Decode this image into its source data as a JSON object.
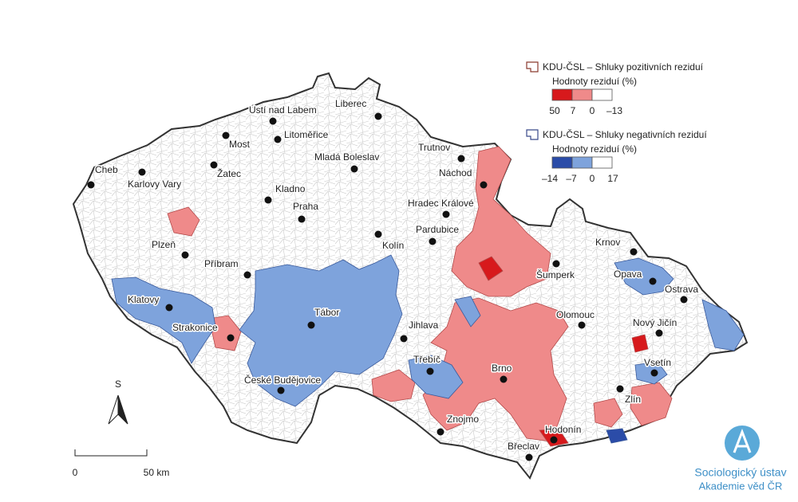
{
  "legend": {
    "positive": {
      "title": "KDU-ČSL – Shluky pozitivních reziduí",
      "subtitle": "Hodnoty reziduí (%)",
      "labels": [
        "50",
        "7",
        "0",
        "–13"
      ],
      "colors": [
        "#d7191c",
        "#ef8a8a",
        "#ffffff"
      ],
      "outline": "#8b3a2f"
    },
    "negative": {
      "title": "KDU-ČSL – Shluky negativních reziduí",
      "subtitle": "Hodnoty reziduí (%)",
      "labels": [
        "–14",
        "–7",
        "0",
        "17"
      ],
      "colors": [
        "#2b4ca8",
        "#7ea3dc",
        "#ffffff"
      ],
      "outline": "#3a4a8b"
    }
  },
  "cities": [
    {
      "name": "Cheb"
    },
    {
      "name": "Karlovy Vary"
    },
    {
      "name": "Most"
    },
    {
      "name": "Žatec"
    },
    {
      "name": "Ústí nad Labem"
    },
    {
      "name": "Litoměřice"
    },
    {
      "name": "Liberec"
    },
    {
      "name": "Mladá Boleslav"
    },
    {
      "name": "Kladno"
    },
    {
      "name": "Praha"
    },
    {
      "name": "Trutnov"
    },
    {
      "name": "Náchod"
    },
    {
      "name": "Hradec Králové"
    },
    {
      "name": "Pardubice"
    },
    {
      "name": "Kolín"
    },
    {
      "name": "Plzeň"
    },
    {
      "name": "Příbram"
    },
    {
      "name": "Klatovy"
    },
    {
      "name": "Strakonice"
    },
    {
      "name": "Tábor"
    },
    {
      "name": "Jihlava"
    },
    {
      "name": "České Budějovice"
    },
    {
      "name": "Třebíč"
    },
    {
      "name": "Brno"
    },
    {
      "name": "Znojmo"
    },
    {
      "name": "Břeclav"
    },
    {
      "name": "Hodonín"
    },
    {
      "name": "Zlín"
    },
    {
      "name": "Šumperk"
    },
    {
      "name": "Olomouc"
    },
    {
      "name": "Krnov"
    },
    {
      "name": "Opava"
    },
    {
      "name": "Ostrava"
    },
    {
      "name": "Nový Jičín"
    },
    {
      "name": "Vsetín"
    }
  ],
  "scale": {
    "north": "S",
    "labels": [
      "0",
      "50 km"
    ]
  },
  "logo": {
    "name": "Sociologický ústav",
    "sub": "Akademie věd ČR"
  }
}
